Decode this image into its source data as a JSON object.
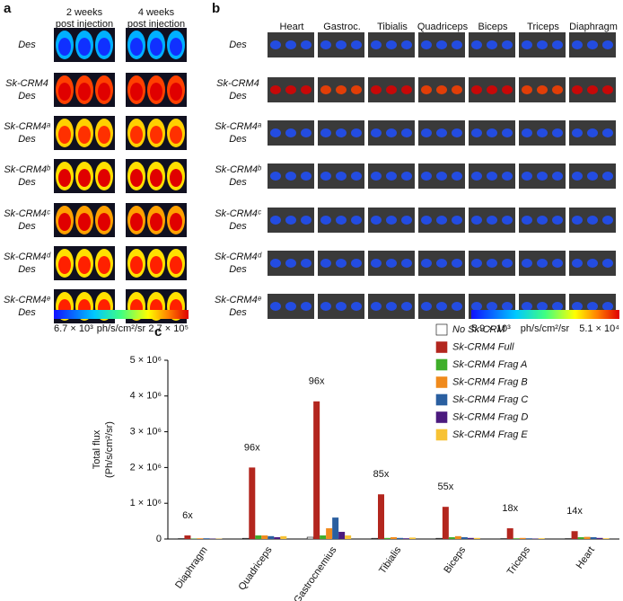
{
  "panel_a": {
    "label": "a",
    "column_headers": [
      [
        "2 weeks",
        "post injection"
      ],
      [
        "4 weeks",
        "post injection"
      ]
    ],
    "rows": [
      [
        "Des"
      ],
      [
        "Sk-CRM4",
        "Des"
      ],
      [
        "Sk-CRM4ᵃ",
        "Des"
      ],
      [
        "Sk-CRM4ᵇ",
        "Des"
      ],
      [
        "Sk-CRM4ᶜ",
        "Des"
      ],
      [
        "Sk-CRM4ᵈ",
        "Des"
      ],
      [
        "Sk-CRM4ᵉ",
        "Des"
      ]
    ],
    "colorbar": {
      "min_label": "6.7 × 10³",
      "unit": "ph/s/cm²/sr",
      "max_label": "2.7 × 10⁵"
    }
  },
  "panel_b": {
    "label": "b",
    "tissues": [
      "Heart",
      "Gastroc.",
      "Tibialis",
      "Quadriceps",
      "Biceps",
      "Triceps",
      "Diaphragm"
    ],
    "rows": [
      [
        "Des"
      ],
      [
        "Sk-CRM4",
        "Des"
      ],
      [
        "Sk-CRM4ᵃ",
        "Des"
      ],
      [
        "Sk-CRM4ᵇ",
        "Des"
      ],
      [
        "Sk-CRM4ᶜ",
        "Des"
      ],
      [
        "Sk-CRM4ᵈ",
        "Des"
      ],
      [
        "Sk-CRM4ᵉ",
        "Des"
      ]
    ],
    "colorbar": {
      "min_label": "5.9 × 10³",
      "unit": "ph/s/cm²/sr",
      "max_label": "5.1 × 10⁴"
    }
  },
  "chart_data": {
    "type": "bar",
    "label": "c",
    "y_label": [
      "Total flux",
      "(Ph/s/cm²/sr)"
    ],
    "categories": [
      "Diaphragm",
      "Quadriceps",
      "Gastrocnemius",
      "Tibialis",
      "Biceps",
      "Triceps",
      "Heart"
    ],
    "series": [
      {
        "name": "No Sk-CRM",
        "color": "#ffffff",
        "values": [
          10000,
          20000,
          50000,
          20000,
          20000,
          10000,
          10000
        ]
      },
      {
        "name": "Sk-CRM4 Full",
        "color": "#b3261e",
        "values": [
          100000,
          2000000,
          3850000,
          1250000,
          900000,
          300000,
          220000
        ]
      },
      {
        "name": "Sk-CRM4 Frag A",
        "color": "#3fae2a",
        "values": [
          10000,
          100000,
          100000,
          30000,
          50000,
          20000,
          50000
        ]
      },
      {
        "name": "Sk-CRM4 Frag B",
        "color": "#f08a1c",
        "values": [
          20000,
          100000,
          300000,
          50000,
          80000,
          30000,
          60000
        ]
      },
      {
        "name": "Sk-CRM4 Frag C",
        "color": "#2a5fa0",
        "values": [
          20000,
          80000,
          600000,
          30000,
          50000,
          20000,
          50000
        ]
      },
      {
        "name": "Sk-CRM4 Frag D",
        "color": "#4b1a7e",
        "values": [
          10000,
          50000,
          200000,
          20000,
          30000,
          10000,
          30000
        ]
      },
      {
        "name": "Sk-CRM4 Frag E",
        "color": "#f7c234",
        "values": [
          10000,
          80000,
          100000,
          40000,
          30000,
          20000,
          20000
        ]
      }
    ],
    "annotations": [
      "6x",
      "96x",
      "96x",
      "85x",
      "55x",
      "18x",
      "14x"
    ],
    "ylim": [
      0,
      5000000
    ],
    "yticks": [
      0,
      {
        "value": 1000000,
        "label": "1 × 10⁶"
      },
      {
        "value": 2000000,
        "label": "2 × 10⁶"
      },
      {
        "value": 3000000,
        "label": "3 × 10⁶"
      },
      {
        "value": 4000000,
        "label": "4 × 10⁶"
      },
      {
        "value": 5000000,
        "label": "5 × 10⁶"
      }
    ]
  }
}
